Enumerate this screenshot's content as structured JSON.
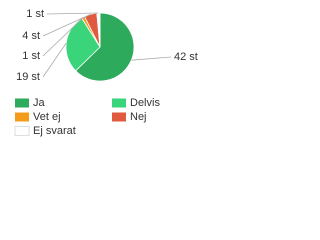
{
  "chart_data": {
    "type": "pie",
    "categories": [
      "Ja",
      "Delvis",
      "Vet ej",
      "Nej",
      "Ej svarat"
    ],
    "values": [
      42,
      19,
      1,
      4,
      1
    ],
    "value_labels": [
      "42 st",
      "19 st",
      "1 st",
      "4 st",
      "1 st"
    ],
    "colors": [
      "#2eaa5c",
      "#3ad47a",
      "#f39c1c",
      "#e05a40",
      "#ffffff"
    ],
    "legend": "bottom"
  }
}
